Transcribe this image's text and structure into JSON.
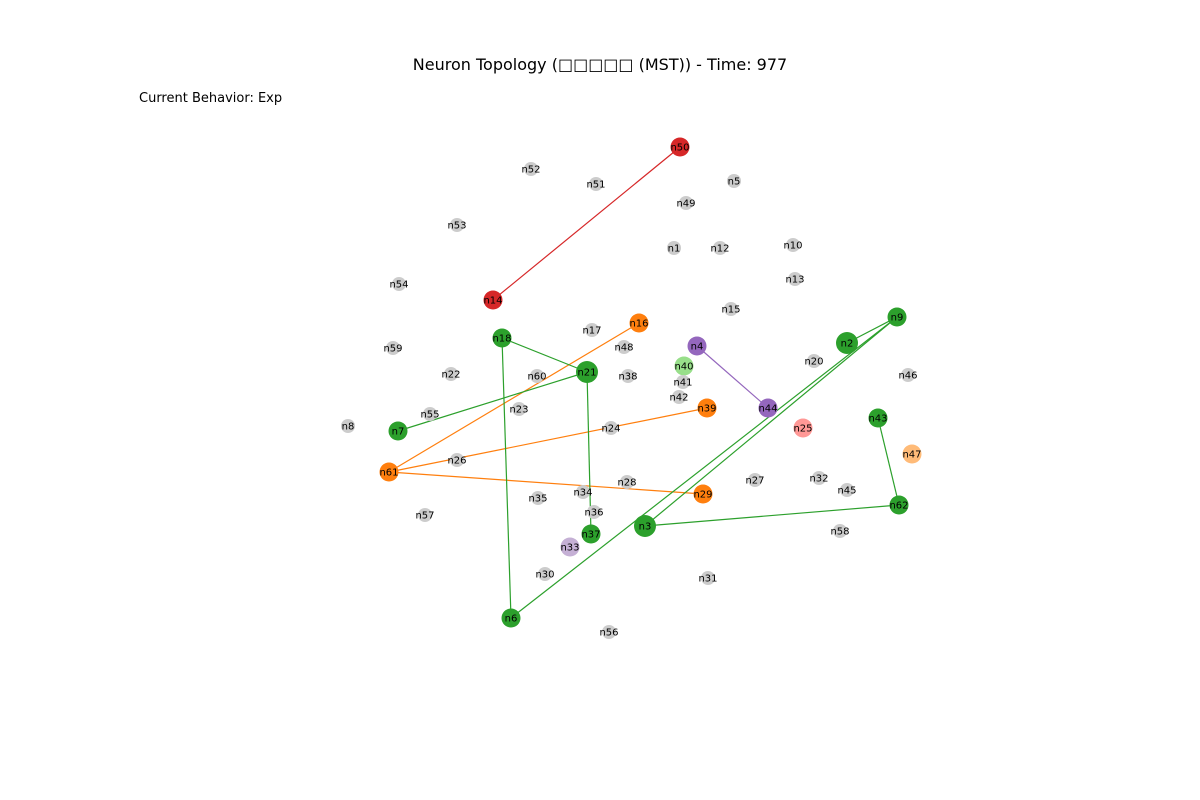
{
  "title": "Neuron Topology (□□□□□ (MST)) - Time: 977",
  "behavior_text": "Current Behavior: Exp",
  "colors": {
    "gray": "#cccccc",
    "green": "#2ca02c",
    "light_green": "#98df8a",
    "orange": "#ff7f0e",
    "light_orange": "#ffbb78",
    "red": "#d62728",
    "pink": "#ff9896",
    "purple": "#9467bd",
    "light_purple": "#c5b0d5"
  },
  "nodes": [
    {
      "id": "n50",
      "color": "red",
      "size": "large"
    },
    {
      "id": "n52",
      "color": "gray",
      "size": "small"
    },
    {
      "id": "n51",
      "color": "gray",
      "size": "small"
    },
    {
      "id": "n5",
      "color": "gray",
      "size": "small"
    },
    {
      "id": "n49",
      "color": "gray",
      "size": "small"
    },
    {
      "id": "n53",
      "color": "gray",
      "size": "small"
    },
    {
      "id": "n1",
      "color": "gray",
      "size": "small"
    },
    {
      "id": "n12",
      "color": "gray",
      "size": "small"
    },
    {
      "id": "n10",
      "color": "gray",
      "size": "small"
    },
    {
      "id": "n13",
      "color": "gray",
      "size": "small"
    },
    {
      "id": "n54",
      "color": "gray",
      "size": "small"
    },
    {
      "id": "n14",
      "color": "red",
      "size": "large"
    },
    {
      "id": "n15",
      "color": "gray",
      "size": "small"
    },
    {
      "id": "n9",
      "color": "green",
      "size": "large"
    },
    {
      "id": "n16",
      "color": "orange",
      "size": "large"
    },
    {
      "id": "n17",
      "color": "gray",
      "size": "small"
    },
    {
      "id": "n18",
      "color": "green",
      "size": "large"
    },
    {
      "id": "n2",
      "color": "green",
      "size": "xlarge"
    },
    {
      "id": "n4",
      "color": "purple",
      "size": "large"
    },
    {
      "id": "n48",
      "color": "gray",
      "size": "small"
    },
    {
      "id": "n59",
      "color": "gray",
      "size": "small"
    },
    {
      "id": "n20",
      "color": "gray",
      "size": "small"
    },
    {
      "id": "n40",
      "color": "light_green",
      "size": "large"
    },
    {
      "id": "n21",
      "color": "green",
      "size": "xlarge"
    },
    {
      "id": "n22",
      "color": "gray",
      "size": "small"
    },
    {
      "id": "n60",
      "color": "gray",
      "size": "small"
    },
    {
      "id": "n38",
      "color": "gray",
      "size": "small"
    },
    {
      "id": "n46",
      "color": "gray",
      "size": "small"
    },
    {
      "id": "n41",
      "color": "gray",
      "size": "small"
    },
    {
      "id": "n42",
      "color": "gray",
      "size": "small"
    },
    {
      "id": "n23",
      "color": "gray",
      "size": "small"
    },
    {
      "id": "n39",
      "color": "orange",
      "size": "large"
    },
    {
      "id": "n44",
      "color": "purple",
      "size": "large"
    },
    {
      "id": "n55",
      "color": "gray",
      "size": "small"
    },
    {
      "id": "n43",
      "color": "green",
      "size": "large"
    },
    {
      "id": "n8",
      "color": "gray",
      "size": "small"
    },
    {
      "id": "n7",
      "color": "green",
      "size": "large"
    },
    {
      "id": "n24",
      "color": "gray",
      "size": "small"
    },
    {
      "id": "n25",
      "color": "pink",
      "size": "large"
    },
    {
      "id": "n47",
      "color": "light_orange",
      "size": "large"
    },
    {
      "id": "n26",
      "color": "gray",
      "size": "small"
    },
    {
      "id": "n61",
      "color": "orange",
      "size": "large"
    },
    {
      "id": "n27",
      "color": "gray",
      "size": "small"
    },
    {
      "id": "n32",
      "color": "gray",
      "size": "small"
    },
    {
      "id": "n28",
      "color": "gray",
      "size": "small"
    },
    {
      "id": "n45",
      "color": "gray",
      "size": "small"
    },
    {
      "id": "n34",
      "color": "gray",
      "size": "small"
    },
    {
      "id": "n35",
      "color": "gray",
      "size": "small"
    },
    {
      "id": "n29",
      "color": "orange",
      "size": "large"
    },
    {
      "id": "n62",
      "color": "green",
      "size": "large"
    },
    {
      "id": "n36",
      "color": "gray",
      "size": "small"
    },
    {
      "id": "n57",
      "color": "gray",
      "size": "small"
    },
    {
      "id": "n3",
      "color": "green",
      "size": "xlarge"
    },
    {
      "id": "n58",
      "color": "gray",
      "size": "small"
    },
    {
      "id": "n37",
      "color": "green",
      "size": "large"
    },
    {
      "id": "n33",
      "color": "light_purple",
      "size": "large"
    },
    {
      "id": "n30",
      "color": "gray",
      "size": "small"
    },
    {
      "id": "n31",
      "color": "gray",
      "size": "small"
    },
    {
      "id": "n6",
      "color": "green",
      "size": "large"
    },
    {
      "id": "n56",
      "color": "gray",
      "size": "small"
    }
  ],
  "edges": [
    {
      "source": "n50",
      "target": "n14",
      "color": "red"
    },
    {
      "source": "n4",
      "target": "n44",
      "color": "purple"
    },
    {
      "source": "n16",
      "target": "n61",
      "color": "orange"
    },
    {
      "source": "n39",
      "target": "n61",
      "color": "orange"
    },
    {
      "source": "n61",
      "target": "n29",
      "color": "orange"
    },
    {
      "source": "n18",
      "target": "n21",
      "color": "green"
    },
    {
      "source": "n18",
      "target": "n6",
      "color": "green"
    },
    {
      "source": "n21",
      "target": "n7",
      "color": "green"
    },
    {
      "source": "n21",
      "target": "n37",
      "color": "green"
    },
    {
      "source": "n2",
      "target": "n9",
      "color": "green"
    },
    {
      "source": "n9",
      "target": "n6",
      "color": "green"
    },
    {
      "source": "n9",
      "target": "n3",
      "color": "green"
    },
    {
      "source": "n3",
      "target": "n62",
      "color": "green"
    },
    {
      "source": "n62",
      "target": "n43",
      "color": "green"
    }
  ]
}
